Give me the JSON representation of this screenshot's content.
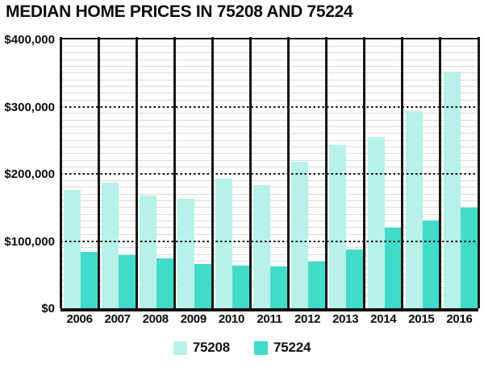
{
  "title": "MEDIAN HOME PRICES IN 75208 AND 75224",
  "chart_data": {
    "type": "bar",
    "title": "MEDIAN HOME PRICES IN 75208 AND 75224",
    "categories": [
      "2006",
      "2007",
      "2008",
      "2009",
      "2010",
      "2011",
      "2012",
      "2013",
      "2014",
      "2015",
      "2016"
    ],
    "series": [
      {
        "name": "75208",
        "color": "#b7f1e9",
        "values": [
          176000,
          187000,
          168000,
          163000,
          193000,
          183000,
          218000,
          243000,
          255000,
          293000,
          352000
        ]
      },
      {
        "name": "75224",
        "color": "#42dbca",
        "values": [
          84000,
          79000,
          74000,
          66000,
          64000,
          62000,
          70000,
          87000,
          120000,
          131000,
          150000
        ]
      }
    ],
    "xlabel": "",
    "ylabel": "",
    "ylim": [
      0,
      400000
    ],
    "y_ticks": [
      {
        "value": 400000,
        "label": "$400,000"
      },
      {
        "value": 300000,
        "label": "$300,000"
      },
      {
        "value": 200000,
        "label": "$200,000"
      },
      {
        "value": 100000,
        "label": "$100,000"
      },
      {
        "value": 0,
        "label": "$0"
      }
    ],
    "minor_grid_step": 10000,
    "major_dotted_grid_values": [
      300000,
      200000,
      100000
    ],
    "grid": "on",
    "legend_position": "bottom",
    "colors": {
      "axis": "#111111",
      "minor_grid": "#d6dede",
      "text": "#0d0d0d",
      "background": "#ffffff"
    }
  }
}
